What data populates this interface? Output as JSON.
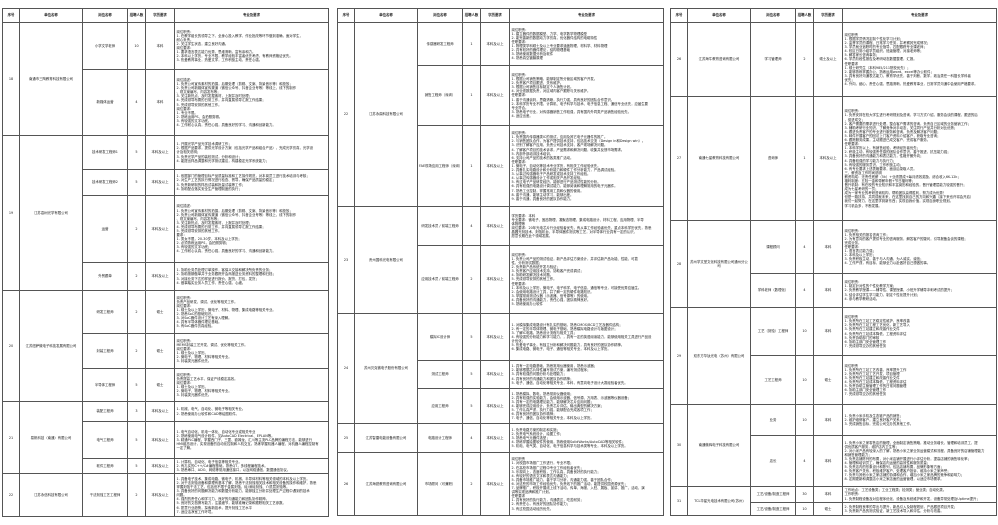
{
  "headers": [
    "序号",
    "单位名称",
    "岗位名称",
    "招聘人数",
    "学历要求",
    "专业及要求"
  ],
  "pages": [
    {
      "companies": [
        {
          "no": "18",
          "name": "南通市三陶教育科技有限公司",
          "jobs": [
            {
              "title": "小学文学老师",
              "count": "10",
              "edu": "本科",
              "req": [
                "岗位职责：",
                "1. 在教学组长的领导之下，全身心投入教学，作业批改等环节做到准确，面对学生，",
                "耐心负责。",
                "2. 关注学生状态，建立良好沟通。",
                "岗位要求：",
                "1. 要求语言表达能力优秀，思维清晰，富有亲和力。",
                "2. 本科以上学历，专业不限，教学经验丰富者优先考虑，有教师资格证优先。",
                "3. 热爱教育事业，热爱文学，工作积极主动，责任心强。"
              ]
            },
            {
              "title": "新媒体运营",
              "count": "4",
              "edu": "本科",
              "req": [
                "岗位描述：",
                "1. 负责公司宣传素材的拍摄，后期处理（剪辑、文案、背景音乐等）和投放；",
                "2. 负责公司新媒体宣传渠道（微信公众号、抖音企业号等）等线上、线下的制作",
                "、现文案编写、内容发布等；",
                "3. 关注新热点，及时发掘素材，上报并及时处理；",
                "4. 完成领导布置的日常工作，并向直属领导汇报工作结果；",
                "5. 完成领导安排的其他工作。",
                "岗位要求：",
                "1. 专业不限。",
                "2. 熟练运用PS、会拍照剪辑。",
                "3. 有较强的文字功底。",
                "4. 工作耐心认真，责任心强，具备良好的学习、沟通和创新能力。"
              ]
            }
          ]
        },
        {
          "no": "19",
          "name": "江苏嘉树光学有限公司",
          "jobs": [
            {
              "title": "技术研发工程师1",
              "count": "5",
              "edu": "本科及以上",
              "req": [
                "1. 开展光学产品光学技术调研工作；",
                "2. 根据产品要求，提供光学设计方案（包括光学产品和组合产品），完成光学仿真，光学设",
                "计及相关说明；",
                "3. 负责光学产品的装校测试，分析和设计；",
                "4. 能提出样品调整和光学测试建议，构建稳定光学系统能力；"
              ]
            },
            {
              "title": "技术研发工程师2",
              "count": "5",
              "edu": "本科及以上",
              "req": [
                "1. 依据部门的管理目标产品质量标准和工艺操作规范，对本岗员工进行技术培训与考核；",
                "2. 对生产工艺的执行情况进行检查、督导，确保产品质量的稳定；",
                "3. 负责新研制的样品试装和批量试装等工作；",
                "4. 协助配合落实安全生产管理制度的执行；"
              ]
            },
            {
              "title": "运营",
              "count": "2",
              "edu": "本科及以上",
              "req": [
                "岗位描述：",
                "1. 负责公司宣传素材的拍摄，后期处理（剪辑、文案、背景音乐等）和投放；",
                "2. 负责公司新媒体宣传渠道（微信公众号、抖音企业号等）等线上、线下的制作",
                "、现文案编写、内容发布等；",
                "3. 关注新热点，及时发掘素材，上报并及时处理；",
                "4. 完成领导布置的日常工作，并向直属领导汇报工作结果；",
                "5. 完成领导安排的其他工作。",
                "要求：",
                "1. 男女不限，20-30岁，本科及以上学历；",
                "2. 必须熟练运用PS，会拍照剪辑；",
                "3. 有较强的文字功底；",
                "4. 工作耐心认真，责任心强，具备良好的学习、沟通和创新能力。"
              ]
            },
            {
              "title": "外贸跟单",
              "count": "2",
              "edu": "本科及以上",
              "req": [
                "1. 协助业务员处理订单操作，客保义交接和解决所负责的业务；",
                "2. 协助按期做单并于业务跟踪开会商报送业务资料的整理和归档；",
                "3. 对接业务下达的样品进行报价，报货，打包，发货；",
                "4. 做事踏实业务人员工作，责任心强，心细。"
              ]
            }
          ]
        },
        {
          "no": "20",
          "name": "江苏纽萨微电子科技发展有限公司",
          "jobs": [
            {
              "title": "研发工程师",
              "count": "2",
              "edu": "硕士",
              "req": [
                "岗位职责：",
                "负责产品研发、调试、优化等相关工作。",
                "岗位要求：",
                "1. 硕士及以上学历，微电子、材料、物理、集成电路等相关专业。",
                "2. 熟悉SoC的基础知识。",
                "3. 对SoC器件设计工艺有深入理解。",
                "4. 具有半导体器件理论基础。",
                "5. 有SoC器件仿真经验。"
              ]
            },
            {
              "title": "封装工程师",
              "count": "2",
              "edu": "硕士",
              "req": [
                "岗位职责：",
                "MEMS封装工艺开发、调试、优化等相关工作。",
                "岗位要求：",
                "1. 硕士及以上学历。",
                "2. 微电子、物理、材料等相关专业。",
                "3. 封装类元器件优先。"
              ]
            },
            {
              "title": "半导体工程师",
              "count": "5",
              "edu": "硕士",
              "req": [
                "岗位职责：",
                "负责提高工艺水平，保证产线稳定高效。",
                "岗位要求：",
                "1. 硕士及以上学历。",
                "2. 微电子、物理、材料等相关专业。",
                "3. 封装类元器件优先。"
              ]
            }
          ]
        },
        {
          "no": "21",
          "name": "易帆科技（南通）有限公司",
          "jobs": [
            {
              "title": "装配工程师",
              "count": "3",
              "edu": "本科及以上",
              "req": [
                "1. 机械、电气、自动化、微电子等相关专业。",
                "2. 熟悉使用办公软件和CAD等绘图软件。"
              ]
            },
            {
              "title": "电气工程师",
              "count": "5",
              "edu": "本科及以上",
              "req": [
                "1. 电气自动化、机电一体化、自动化专业或相关专业",
                "2. 熟练使用电气设计软件，如AutoCAD Electrical、EPLAN等。",
                "3. 精通PLC编程，掌握西门子、三菱、欧姆龙、汇川等主流PLC品牌的编程方法，能够进行",
                "HMI组态设计，实现设备的自动化控制和人机交互。熟练掌握机器人编程，对机器人编程控制有",
                "一定了解。"
              ]
            },
            {
              "title": "软件工程师",
              "count": "5",
              "edu": "本科及以上",
              "req": [
                "1. 计算机、自动化、电子信息等相关专业。",
                "2. 有扎实的C++/C#编程基础，熟悉QT，多线程编程技术。",
                "3. 熟悉串口、ADO、网络等常用通信接口，以及网络通信，数据通信协议。"
              ]
            }
          ]
        },
        {
          "no": "22",
          "name": "江苏永信科技有限公司",
          "jobs": [
            {
              "title": "干法刻蚀工艺工程师",
              "count": "2",
              "edu": "本科及以上",
              "req": [
                "1. 具备电子技术、集成电路、微电子、机械、半导体材料等相关领域的本科及以上学历。",
                "2. 对干法刻蚀设备和原理有基本了解，熟悉干法刻蚀相关技术和相关设备的操作和维护，熟悉",
                "掌握刻蚀干法工艺，包括但不限于金属刻蚀、硅/深硅刻蚀、介质层刻蚀等。",
                "3. 具备良好的问题解决能力和数据分析能力，能够独立分析并处理生产过程中遇到的技术",
                "问题。",
                "4. 强烈的责任心和学习力，良好的沟通能力和团队协作精神。",
                "5. 良好的文档撰写能力，注重细节，能够准确记录和跟踪相关工艺参数。",
                "6. 愿意行业趋势，探索新技术，提升刻蚀工艺水平",
                "7. 适应洁净室工作环境。"
              ]
            }
          ]
        }
      ]
    },
    {
      "companies": [
        {
          "no": "22",
          "name": "江苏永鼎科技有限公司",
          "jobs": [
            {
              "title": "传感器研发工程师",
              "count": "1",
              "edu": "本科及以上",
              "req": [
                "岗位职责：",
                "1. 建立器件的数据模型、力学、电学数学物理模型",
                "2. 能完善新的数据动力学仿真，优化器件结构的电磁特性",
                "任职要求：",
                "1. 物理类学科硕士及以上专业要求涵盖物理、材料学、材料物理",
                "2. 具有较好的器件理论，结构物理基础",
                "3. 熟练使用数据分析及软件",
                "4. 熟悉真空镀膜原理"
              ]
            },
            {
              "title": "销售工程师（深圳）",
              "count": "1",
              "edu": "本科及以上",
              "req": [
                "岗位职责：",
                "1. 根据公司销售策略，能够制定所分管区域的客户开发。",
                "2. 负责客户项目跟进、关系维护。",
                "3. 根据公司销售目标制定个人销售计划。",
                "4. 对业绩数据负责，对区域内客户跟踪与关系维护。",
                "任职要求：",
                "1. 善于沟通谈判，思路清晰，执行力强，具有良好的团队合作意识。",
                "2. 本科学历专业不限，计算机、电子科学与技术、电子信息工程、通信专业优先，应届生要",
                "专业符合。",
                "3. 熟悉电子行业，对传感器销售工作较强，具有国内外同类产品销售经验优先。",
                "4. 适应出差。"
              ]
            },
            {
              "title": "FAE现场应用工程师（深圳）",
              "count": "1",
              "edu": "本科及以上",
              "req": [
                "岗位职责：",
                "1. 负责国内传感器类IC的测试，应用及其它电子元器件的推广。",
                "2. 与销售团队合作，为客户提供技术支持，包括技术交流（Design in和Design win）。",
                "3. 识别了解客户应用，负责公司技术支持，客户现场解决问题。",
                "4. 了解客户项目的技术诉求，产品需求和解决问题，收集并反馈市场需求。",
                "5. 内部外部培训技术培训。",
                "6. 支持公司产品的技术的各类推广活动。",
                "任职要求：",
                "1. 微电子、自动化等技术专业学历，有相关工作经验优先。",
                "2. 具备扎实电路设计和分析能力和硬件工作分析能力，产品调试经验。",
                "3. 从事过传感器电子产品研发或技术支持工作经验。",
                "4. 从事过传感器设计工作或相关产品开发经验。",
                "5. 有过电子产品研发经历，能够进行产品测试性能的分析。",
                "6. 具有较强的电路设计调试能力，能够阅读和理解常用的电子元器件。",
                "7. 熟悉工业控制，掌握常用工具和仪器的使用。",
                "8. 善于沟通，能够主动学习，能够出差。",
                "9. 善于沟通，具备良好的团队协作能力。"
              ]
            }
          ]
        },
        {
          "no": "23",
          "name": "贵州国科光电有限公司",
          "jobs": [
            {
              "title": "研发技术员 / 前端工程师",
              "count": "4",
              "edu": "本科及以上",
              "req": [
                "学历要求：本科",
                "专业要求：微电子、固态物理、凝聚态物理、集成电路设计、材料工程、应用物理、半导",
                "体物理等",
                "岗位要求：20年光电芯片行业经验者优先，有从事工作经验者优先，重点本科学历优先，熟悉",
                "晶圆光刻技术，刻蚀机台，半导体器件测试等工艺，对半导体行业具有一定的认识，",
                "愿意长期在此个领域发展。"
              ]
            },
            {
              "title": "应用技术员 / 前端工程师",
              "count": "2",
              "edu": "本科及以上",
              "req": [
                "岗位职责：",
                "1. 负责公司产品的测试验证，新产品评估方案设计，并评估新产品功能、性能、可靠",
                "性，分析测试数据；",
                "2. 负责新产品系统开发与验证；",
                "3. 负责客户应用技术支持，协助客户完成调试；",
                "4. 协助研发解决技术问题。",
                "5. 完成领导安排的其他工作。",
                "任职要求：",
                "1. 本科及以上学历，微电子、电子科学、电子信息，通信等专业，可接受优秀应届生。",
                "2. 会使用电路设计工具，并了解一定的硬件电路知识。",
                "3. 掌握常用测试仪器（示波器、信号源等）的使用。",
                "4. 具备良好的沟通能力，责任心强，团队精神良好。",
                "5. 熟练使用办公软件"
              ]
            }
          ]
        },
        {
          "no": "24",
          "name": "苏州贝克微电子股份有限公司",
          "jobs": [
            {
              "title": "模拟IC设计师",
              "count": "5",
              "edu": "本科及以上",
              "req": [
                "1. 对模拟集成电路设计有扎实的基础，熟悉CMOS/BCD工艺及器件结构；",
                "2. 有一定的半导体物理、微电子基础，熟悉模拟电路设计与版图设计；",
                "3. 了解IC电路，熟悉设计流程与相关工具；",
                "4. 有较强的分析能力和学习能力，，具有一定的英语阅读能力，能够使用相关工具进行产品设",
                "计优化；",
                "5. 热爱电子事业，有独立分析和解决问题能力，具有良好的团队协作精神。",
                "6. 集成电路、微电子、电子、通信等相关专业，本科及以上学历。"
              ]
            },
            {
              "title": "测试工程师",
              "count": "5",
              "edu": "本科及以上",
              "req": [
                "1. 具有一定电路基础，熟悉常用仪器使用，熟悉示波器；",
                "2. 能够根据芯片特性编写测试方案，编写测试程序；",
                "3. 具有较强的问题分析与处理能力；",
                "4. 具有良好的沟通能力和团队协作精神；",
                "5. 电子、通信、自动化等相关专业，本科，有意向电子设计大赛经验者优先。"
              ]
            },
            {
              "title": "应用工程师",
              "count": "5",
              "edu": "本科及以上",
              "req": [
                "1. 熟悉模拟、数电，熟悉常用仪器使用；",
                "2. 具有较强的实验能力，会使用示波器、信号源、万用表、示波器等仪器设备；",
                "3. 具有一定的电路理论能力，能够解决芯片应用问题；",
                "4. 能够完成应用设计，负责芯片评估、输出典型的解决方案；",
                "5. 工作认真严谨，执行力强，能够配合完成各项工作；",
                "6. 具有良好的团队协作精神；",
                "7. 电子、通信、自动化等相关专业，本科及以上学历。"
              ]
            }
          ]
        },
        {
          "no": "25",
          "name": "江苏智雷电能设备有限公司",
          "jobs": [
            {
              "title": "电路设计工程师",
              "count": "4",
              "edu": "本科及以上",
              "req": [
                "1. 负责电路方案的制定和实施；",
                "2. 负责电气系统设计，绘图工作；",
                "3. 熟悉电气元器件选型；",
                "4. 熟练掌握绘图软件的使用，熟练使用SolidWorks/AutoCAD等相关软件；",
                "5. 机电、电气类、自动化、电子信息科学与技术类等专业，本科及以上学历。"
              ]
            }
          ]
        },
        {
          "no": "26",
          "name": "江苏海锐教育咨询有限公司",
          "jobs": [
            {
              "title": "市场顾问（可兼职）",
              "count": "2",
              "edu": "本科及以上",
              "req": [
                "岗位职责",
                "1. 对校园市场推广工作进行，专业不限；",
                "2. 在高校市场推广过程中专业工作经验者优先；",
                "3. 乐观向上，态度积极，工作认真，具备良好的执行能力；",
                "4. 有较好的语言文字和表达沟通能力；",
                "5. 具备市场推广能力，善于学习分析，沟通能力强，善于团队合作；",
                "6. 对这些的市场工作经验优先，负责线下的推广活动，能提供校园资源优先；",
                "7. 品牌推广，积极开展线上线下活动，传单、海报、入驻、展板、宣讲、推广、活动、演",
                "讲等实现品牌和推广计划。",
                "任职要求",
                "1. 具有良好的执行能力，沟通表达，吃苦耐劳；",
                "2. 有责任心，有良好的团队协作能力；",
                "3. 有过校园活动经历优先。"
              ]
            }
          ]
        }
      ]
    },
    {
      "companies": [
        {
          "no": "26",
          "name": "江苏海牛教育咨询有限公司",
          "jobs": [
            {
              "title": "学习管理师",
              "count": "2",
              "edu": "硕士及以上",
              "req": [
                "岗位职责",
                "1. 根据学员情况定制个性化学习计划；",
                "2. 监督学员的课程、日常学习任务，并考察其完成情况；",
                "3. 学员就业追踪时的专业指导，匹配跟踪专业课老师；",
                "4. 校区日常小组学员组织，班级管理，对接老师等；",
                "5. 解答家长咨询事务；",
                "6. 学员阶段性报告及考研动态数据整理，汇报。",
                "任职要求",
                "1. 硕士研究生（本科985/211院校优先）；",
                "2. 能够熟练掌握办公，熟练运用word、excel等办公软件；",
                "3. 具有良好沟通表达能力，教育学优先，善于判断、数学，政治类任一科擅长学科者",
                "优先；",
                "4. 外向，细心，责任心强，思路清晰，热爱教育事业，日常学员沟通中会使用严格要求。"
              ]
            }
          ]
        },
        {
          "no": "27",
          "name": "南通七星教育科技有限公司",
          "jobs": [
            {
              "title": "咨询师",
              "count": "1",
              "edu": "本科及以上",
              "req": [
                "岗位职责：",
                "1. 负责安排在校大学生进行考研规划及咨询，学习方式介绍，服务会谈的课程，跟进的后",
                "，促进成交；",
                "2. 客户需要的需求进行处理，整合客户需求的咨询，负责自己区域的业务营销工作；",
                "3. 辅助考研行业知识，了解竞争对手动态，关注同行产品并分析对比优势；",
                "4. 跟进负责客户的专业进行服务和咨询，负责及解决客户问题；",
                "5. 邮件开展客户的回访上门客户资料介绍客户，获取专业咨询；",
                "6. 跟踪服务成果，主动跟进已成交客户，完成客户服务。",
                "任职要求：",
                "1. 本科学历以上，有销售经验，考研经历者优先；",
                "2. 积极主动，有较强责任感的团队合作意识，善于推进，抗压能力强；",
                "3. 具备良好的沟通能力和表达能力，性格开朗外向；",
                "4. 具备较强的学习能力与执行力；",
                "5. 有较强的服务意识，工作积极主动；",
                "6. 有专业要求上述表格要求，面谈后录取人员。",
                "三、薪资及工作时间说明",
                "薪资构成：无责任底薪（5k）+业绩提成+每月绩效奖励，综合收入6K-12k；",
                "福利制度：五险一金和带薪年假+节日福利等；",
                "晋升机制：有在校的专业知识和丰富阅历和经验的，晋升管理层能力较强的晋升；",
                "成为七星考研的一员；",
                "成为一家专业的考研咨询机构，帮助团队赢得胜利，努力成为优秀！",
                "但是一路扶持，共同成就未来，在这里找到自己的方向和兴趣（接下来也许将会开启）",
                "我们一起努力，在这里学到新东西；实现自我价值，实现自身职业规划。",
                "学习机会多，不断发展。"
              ]
            }
          ]
        },
        {
          "no": "28",
          "name": "苏州学文堂文化科技有限公司通州分公司",
          "jobs": [
            {
              "title": "课程顾问",
              "count": "4",
              "edu": "本科",
              "req": [
                "岗位职责：",
                "1. 负责相关的报名咨询工作；",
                "2. 为有意向的客户提供专业的咨询服务，解答客户的疑问，引导报备会谈的课程；",
                "完成业务。",
                "任职要求：",
                "1. 语言表达能力强；",
                "2. 本科及以上学历；",
                "3. 负责积极主动，善于与人沟通，为人诚实，诚信；",
                "4. 工作严谨，有目标，能够全力以赴做好自己想做的事。"
              ]
            },
            {
              "title": "学科老师（数理化）",
              "count": "4",
              "edu": "本科",
              "req": [
                "岗位职责：",
                "1. 制定针对性的个性化教学方案；",
                "2. 负责教学授课——辅导性、课堂授课、小班升学辅导冲刺考试的提升；",
                "3. 结合评估学生学习能力，制定个性化提升计划；",
                "4. 参与教学教研活动。"
              ]
            }
          ]
        },
        {
          "no": "29",
          "name": "双东方华钛光电（苏州）有限公司",
          "jobs": [
            {
              "title": "工艺（刻蚀）工程师",
              "count": "10",
              "edu": "本科",
              "req": [
                "岗位职责",
                "1. 负责所在工站工艺稳定性维护，良率改善",
                "2. 负责所在工站工程工艺优化，新工艺导入",
                "3. 负责所在工站建立和改善作业文件",
                "4. 负责所在工站成本降低，工程资料评估",
                "5. 负责协助部门的审核",
                "6. 协助主部门安全管理工作",
                "7. 完成领导交办的其他任务"
              ]
            },
            {
              "title": "工艺工程师",
              "count": "10",
              "edu": "硕士",
              "req": [
                "岗位职责",
                "1. 负责所在工站工艺改善，良率提升工作",
                "2. 负责所在工站工艺开发，项目管理",
                "3. 负责所在工站建立和改善作业文件",
                "4. 负责所在工站成本降低，工程资料评估",
                "5. 负责协助主管管理工作的日常问题管理",
                "6. 协助主部门安全管理工作",
                "7. 完成领导交办的其他任务"
              ]
            }
          ]
        },
        {
          "no": "30",
          "name": "南通微辉电子科技有限公司",
          "jobs": [
            {
              "title": "业务",
              "count": "10",
              "edu": "本科",
              "req": [
                "1. 负责小米手机及生态链产品的销售；",
                "2. 维护维修客户，建立良好客户关系；",
                "3. 完成销售目标，完成公司交办的其他工作。"
              ]
            },
            {
              "title": "店长",
              "count": "4",
              "edu": "本科",
              "req": [
                "1. 负责小米之家零售店的管理，全面制定销售策略，推动业务增长，管理和培训员工，提",
                "供优质客户服务，维护店内卫生等；",
                "2. 对小米产品有较深入的了解，熟悉小米之家业务运营模式和流程，具备良好的店铺管理能力",
                "和销售管理能力；",
                "3. 负责店铺陈列的布置，对小米店铺开展进行小评估分析，提高店铺的销售转化率；",
                "4. 管理和培训员工，确保店内运营的高效性和服务质量；",
                "5. 负责店内的形象设计和陈列，包括店铺布置，品牌形象等方面；",
                "6. 负责客户关系，积极维护客户，处理客户投诉，维持小米之家声誉；",
                "7. 负责与其他小米之家店铺的协调和合作，增加小米之家品牌的竞争和影响力；",
                "8. 定期更新和调整店小米之家店面的运营管理，以适应市场需求。"
              ]
            }
          ]
        },
        {
          "no": "31",
          "name": "TCL华星光电技术有限公司(苏州)",
          "jobs": [
            {
              "title": "工艺/设备/制造工程师",
              "count": "30",
              "edu": "本科",
              "req": [
                "工作地点：工艺设备类；工业工程类；检测类；营业类；自动化类。",
                "工作职责：",
                "1. 负责制程设备及对应程序优化，设备及系统维护和开发，设备异常处理及Uptime提升；"
              ]
            },
            {
              "title": "工艺/设备/制造工程师",
              "count": "10",
              "edu": "硕士",
              "req": [
                "2. 负责制程良率的导出与提升，新品引入及制程规划，产品跟进项目开发；",
                "3. 负责新产品的测试验证，新工艺技术导入和评估，分析与改善。"
              ]
            }
          ]
        }
      ]
    }
  ]
}
